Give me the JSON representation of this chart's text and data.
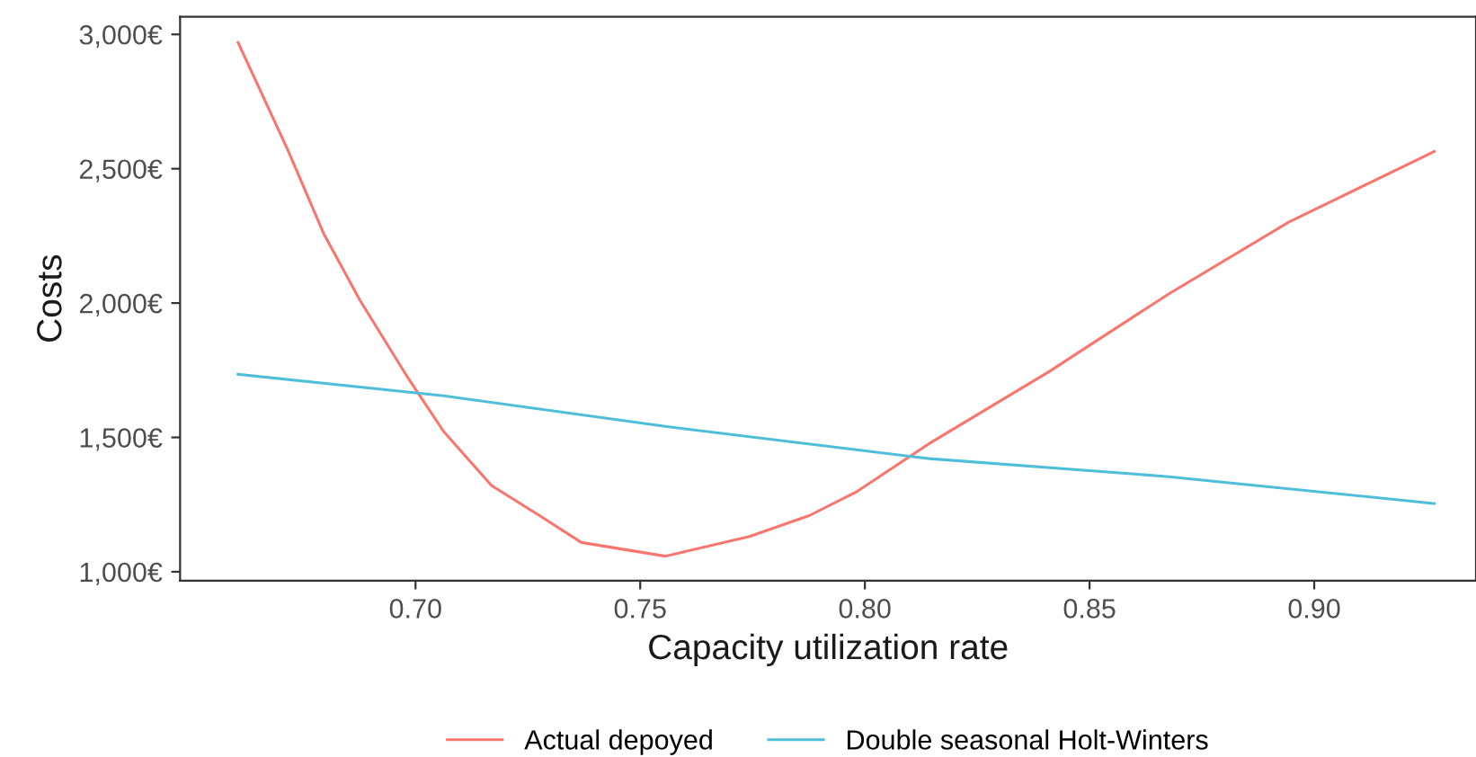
{
  "chart_data": {
    "type": "line",
    "xlabel": "Capacity utilization rate",
    "ylabel": "Costs",
    "series": [
      {
        "name": "Actual depoyed",
        "color": "#f8766d",
        "x": [
          0.6605,
          0.6716,
          0.6796,
          0.6876,
          0.6983,
          0.7063,
          0.7169,
          0.7276,
          0.7369,
          0.7556,
          0.7743,
          0.7876,
          0.7983,
          0.8143,
          0.8409,
          0.8676,
          0.8943,
          0.9267
        ],
        "values": [
          2970,
          2569,
          2257,
          2011,
          1722,
          1521,
          1321,
          1209,
          1109,
          1058,
          1131,
          1209,
          1299,
          1477,
          1744,
          2034,
          2301,
          2564
        ]
      },
      {
        "name": "Double seasonal Holt-Winters",
        "color": "#4fbfd9",
        "x": [
          0.6605,
          0.7063,
          0.7556,
          0.8143,
          0.8676,
          0.9267
        ],
        "values": [
          1735,
          1655,
          1541,
          1421,
          1354,
          1254
        ]
      }
    ],
    "xlim": [
      0.6476,
      0.936
    ],
    "ylim": [
      967,
      3066
    ],
    "xticks": [
      {
        "value": 0.7,
        "label": "0.70"
      },
      {
        "value": 0.75,
        "label": "0.75"
      },
      {
        "value": 0.8,
        "label": "0.80"
      },
      {
        "value": 0.85,
        "label": "0.85"
      },
      {
        "value": 0.9,
        "label": "0.90"
      }
    ],
    "yticks": [
      {
        "value": 1000,
        "label": "1,000€"
      },
      {
        "value": 1500,
        "label": "1,500€"
      },
      {
        "value": 2000,
        "label": "2,000€"
      },
      {
        "value": 2500,
        "label": "2,500€"
      },
      {
        "value": 3000,
        "label": "3,000€"
      }
    ],
    "grid": false,
    "legend": "bottom",
    "line_style": "solid",
    "marker": "none"
  }
}
